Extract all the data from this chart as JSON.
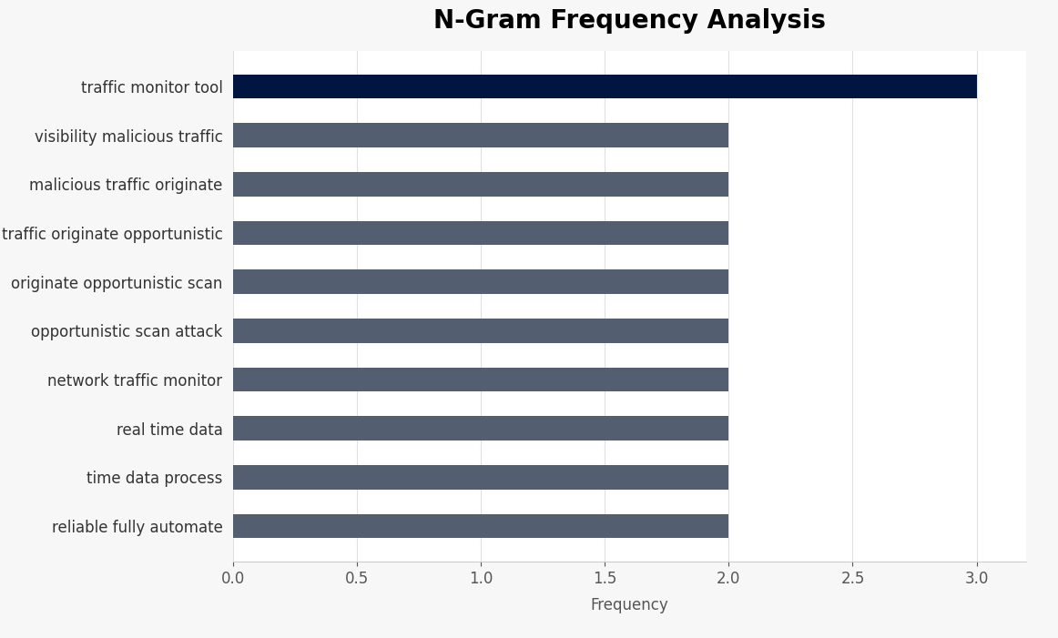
{
  "title": "N-Gram Frequency Analysis",
  "xlabel": "Frequency",
  "categories": [
    "reliable fully automate",
    "time data process",
    "real time data",
    "network traffic monitor",
    "opportunistic scan attack",
    "originate opportunistic scan",
    "traffic originate opportunistic",
    "malicious traffic originate",
    "visibility malicious traffic",
    "traffic monitor tool"
  ],
  "values": [
    2,
    2,
    2,
    2,
    2,
    2,
    2,
    2,
    2,
    3
  ],
  "bar_colors": [
    "#535e70",
    "#535e70",
    "#535e70",
    "#535e70",
    "#535e70",
    "#535e70",
    "#535e70",
    "#535e70",
    "#535e70",
    "#001540"
  ],
  "xlim": [
    0,
    3.2
  ],
  "xticks": [
    0.0,
    0.5,
    1.0,
    1.5,
    2.0,
    2.5,
    3.0
  ],
  "figure_bg": "#f7f7f7",
  "axes_bg": "#ffffff",
  "title_fontsize": 20,
  "label_fontsize": 12,
  "tick_fontsize": 12,
  "bar_height": 0.5
}
